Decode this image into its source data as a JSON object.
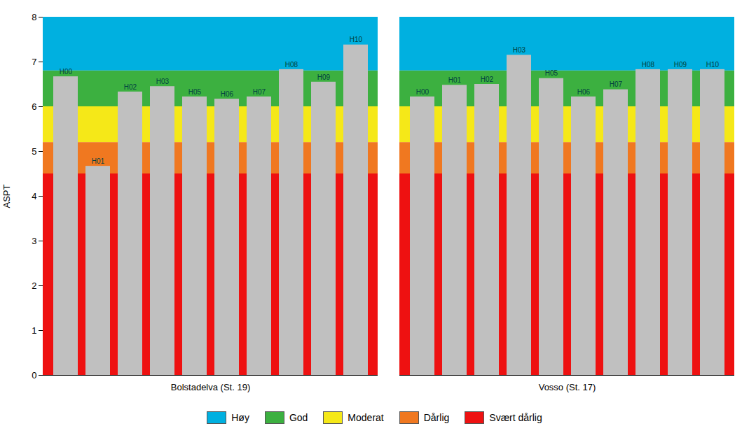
{
  "chart_data": {
    "type": "bar",
    "ylabel": "ASPT",
    "ylim": [
      0,
      8
    ],
    "yticks": [
      0,
      1,
      2,
      3,
      4,
      5,
      6,
      7,
      8
    ],
    "color": "#c0c0c0",
    "legend": "bottom",
    "groups": [
      {
        "name": "Bolstadelva (St. 19)",
        "categories": [
          "H00",
          "H01",
          "H02",
          "H03",
          "H05",
          "H06",
          "H07",
          "H08",
          "H09",
          "H10"
        ],
        "values": [
          6.67,
          4.67,
          6.33,
          6.45,
          6.22,
          6.17,
          6.22,
          6.83,
          6.55,
          7.38
        ]
      },
      {
        "name": "Vosso (St. 17)",
        "categories": [
          "H00",
          "H01",
          "H02",
          "H03",
          "H05",
          "H06",
          "H07",
          "H08",
          "H09",
          "H10"
        ],
        "values": [
          6.22,
          6.48,
          6.5,
          7.15,
          6.63,
          6.22,
          6.38,
          6.83,
          6.83,
          6.83
        ]
      }
    ],
    "zones": [
      {
        "name": "Høy",
        "color": "#00b0e0",
        "from": 6.8,
        "to": 8.0
      },
      {
        "name": "God",
        "color": "#3cb040",
        "from": 6.0,
        "to": 6.8
      },
      {
        "name": "Moderat",
        "color": "#f5e818",
        "from": 5.2,
        "to": 6.0
      },
      {
        "name": "Dårlig",
        "color": "#f07820",
        "from": 4.5,
        "to": 5.2
      },
      {
        "name": "Svært dårlig",
        "color": "#ee1111",
        "from": 0,
        "to": 4.5
      }
    ]
  }
}
